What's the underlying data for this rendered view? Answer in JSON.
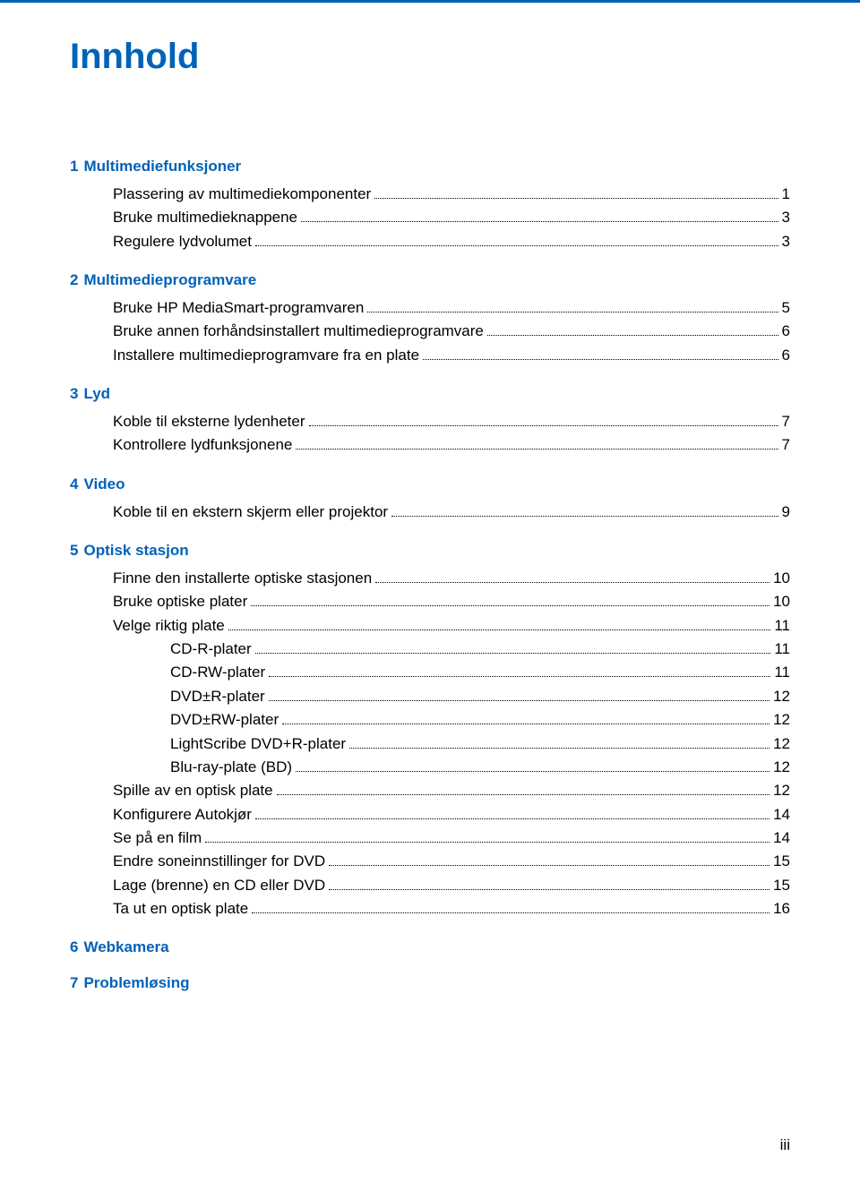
{
  "colors": {
    "heading_blue": "#0062b8",
    "text_black": "#000000",
    "top_rule": "#0062b8",
    "background": "#ffffff"
  },
  "title": "Innhold",
  "sections": [
    {
      "num": "1",
      "heading": "Multimediefunksjoner",
      "entries": [
        {
          "level": 1,
          "label": "Plassering av multimediekomponenter",
          "page": "1"
        },
        {
          "level": 1,
          "label": "Bruke multimedieknappene",
          "page": "3"
        },
        {
          "level": 1,
          "label": "Regulere lydvolumet",
          "page": "3"
        }
      ]
    },
    {
      "num": "2",
      "heading": "Multimedieprogramvare",
      "entries": [
        {
          "level": 1,
          "label": "Bruke HP MediaSmart-programvaren",
          "page": "5"
        },
        {
          "level": 1,
          "label": "Bruke annen forhåndsinstallert multimedieprogramvare",
          "page": "6"
        },
        {
          "level": 1,
          "label": "Installere multimedieprogramvare fra en plate",
          "page": "6"
        }
      ]
    },
    {
      "num": "3",
      "heading": "Lyd",
      "entries": [
        {
          "level": 1,
          "label": "Koble til eksterne lydenheter",
          "page": "7"
        },
        {
          "level": 1,
          "label": "Kontrollere lydfunksjonene",
          "page": "7"
        }
      ]
    },
    {
      "num": "4",
      "heading": "Video",
      "entries": [
        {
          "level": 1,
          "label": "Koble til en ekstern skjerm eller projektor",
          "page": "9"
        }
      ]
    },
    {
      "num": "5",
      "heading": "Optisk stasjon",
      "entries": [
        {
          "level": 1,
          "label": "Finne den installerte optiske stasjonen",
          "page": "10"
        },
        {
          "level": 1,
          "label": "Bruke optiske plater",
          "page": "10"
        },
        {
          "level": 1,
          "label": "Velge riktig plate",
          "page": "11"
        },
        {
          "level": 2,
          "label": "CD-R-plater",
          "page": "11"
        },
        {
          "level": 2,
          "label": "CD-RW-plater",
          "page": "11"
        },
        {
          "level": 2,
          "label": "DVD±R-plater",
          "page": "12"
        },
        {
          "level": 2,
          "label": "DVD±RW-plater",
          "page": "12"
        },
        {
          "level": 2,
          "label": "LightScribe DVD+R-plater",
          "page": "12"
        },
        {
          "level": 2,
          "label": "Blu-ray-plate (BD)",
          "page": "12"
        },
        {
          "level": 1,
          "label": "Spille av en optisk plate",
          "page": "12"
        },
        {
          "level": 1,
          "label": "Konfigurere Autokjør",
          "page": "14"
        },
        {
          "level": 1,
          "label": "Se på en film",
          "page": "14"
        },
        {
          "level": 1,
          "label": "Endre soneinnstillinger for DVD",
          "page": "15"
        },
        {
          "level": 1,
          "label": "Lage (brenne) en CD eller DVD",
          "page": "15"
        },
        {
          "level": 1,
          "label": "Ta ut en optisk plate",
          "page": "16"
        }
      ]
    },
    {
      "num": "6",
      "heading": "Webkamera",
      "entries": []
    },
    {
      "num": "7",
      "heading": "Problemløsing",
      "entries": []
    }
  ],
  "footer_page": "iii"
}
